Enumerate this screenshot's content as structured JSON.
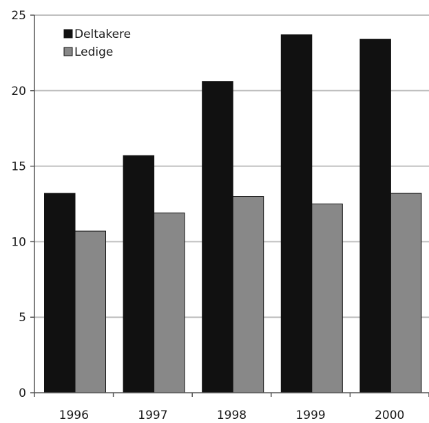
{
  "chart_data": {
    "type": "bar",
    "categories": [
      "1996",
      "1997",
      "1998",
      "1999",
      "2000"
    ],
    "series": [
      {
        "name": "Deltakere",
        "color": "#111111",
        "values": [
          13.2,
          15.7,
          20.6,
          23.7,
          23.4
        ]
      },
      {
        "name": "Ledige",
        "color": "#888888",
        "values": [
          10.7,
          11.9,
          13.0,
          12.5,
          13.2
        ]
      }
    ],
    "title": "",
    "xlabel": "",
    "ylabel": "",
    "ylim": [
      0,
      25
    ],
    "yticks": [
      0,
      5,
      10,
      15,
      20,
      25
    ],
    "grid": true,
    "legend_position": "top-left"
  }
}
